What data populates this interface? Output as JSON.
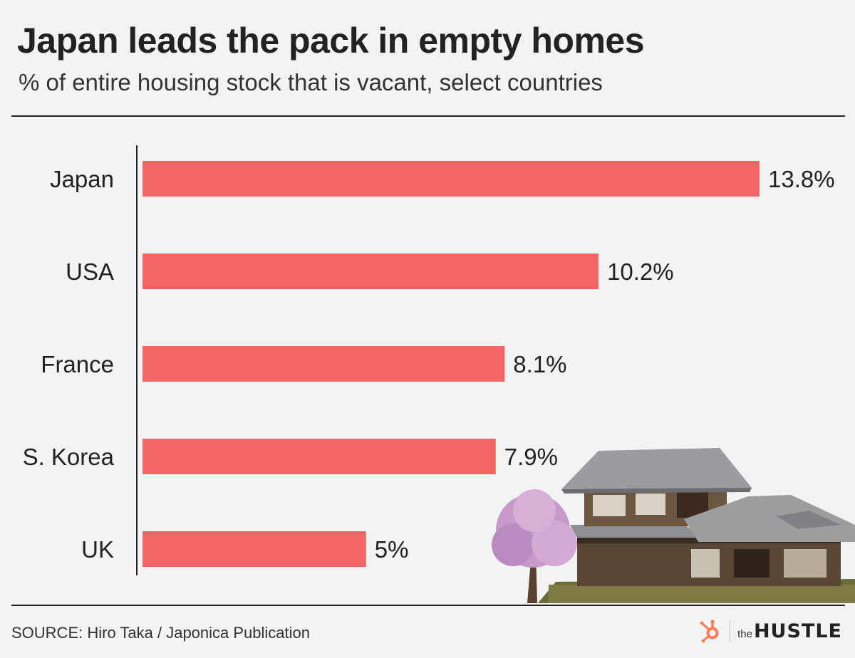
{
  "header": {
    "title": "Japan leads the pack in empty homes",
    "subtitle": "% of entire housing stock that is vacant, select countries"
  },
  "chart_data": {
    "type": "bar",
    "orientation": "horizontal",
    "categories": [
      "Japan",
      "USA",
      "France",
      "S. Korea",
      "UK"
    ],
    "values": [
      13.8,
      10.2,
      8.1,
      7.9,
      5
    ],
    "data_labels": [
      "13.8%",
      "10.2%",
      "8.1%",
      "7.9%",
      "5%"
    ],
    "title": "Japan leads the pack in empty homes",
    "subtitle": "% of entire housing stock that is vacant, select countries",
    "xlabel": "",
    "ylabel": "",
    "xlim": [
      0,
      13.8
    ],
    "grid": false,
    "legend": "none",
    "bar_color": "#f46464"
  },
  "footer": {
    "source": "SOURCE: Hiro Taka / Japonica Publication",
    "brand_the": "the",
    "brand_name": "HUSTLE"
  },
  "icons": {
    "brand_mark": "hubspot-sprocket-icon",
    "illustration": "abandoned-house-illustration"
  },
  "colors": {
    "background": "#f2f3f3",
    "bar": "#f46464",
    "text": "#222222",
    "brand_orange": "#ff7a59"
  }
}
